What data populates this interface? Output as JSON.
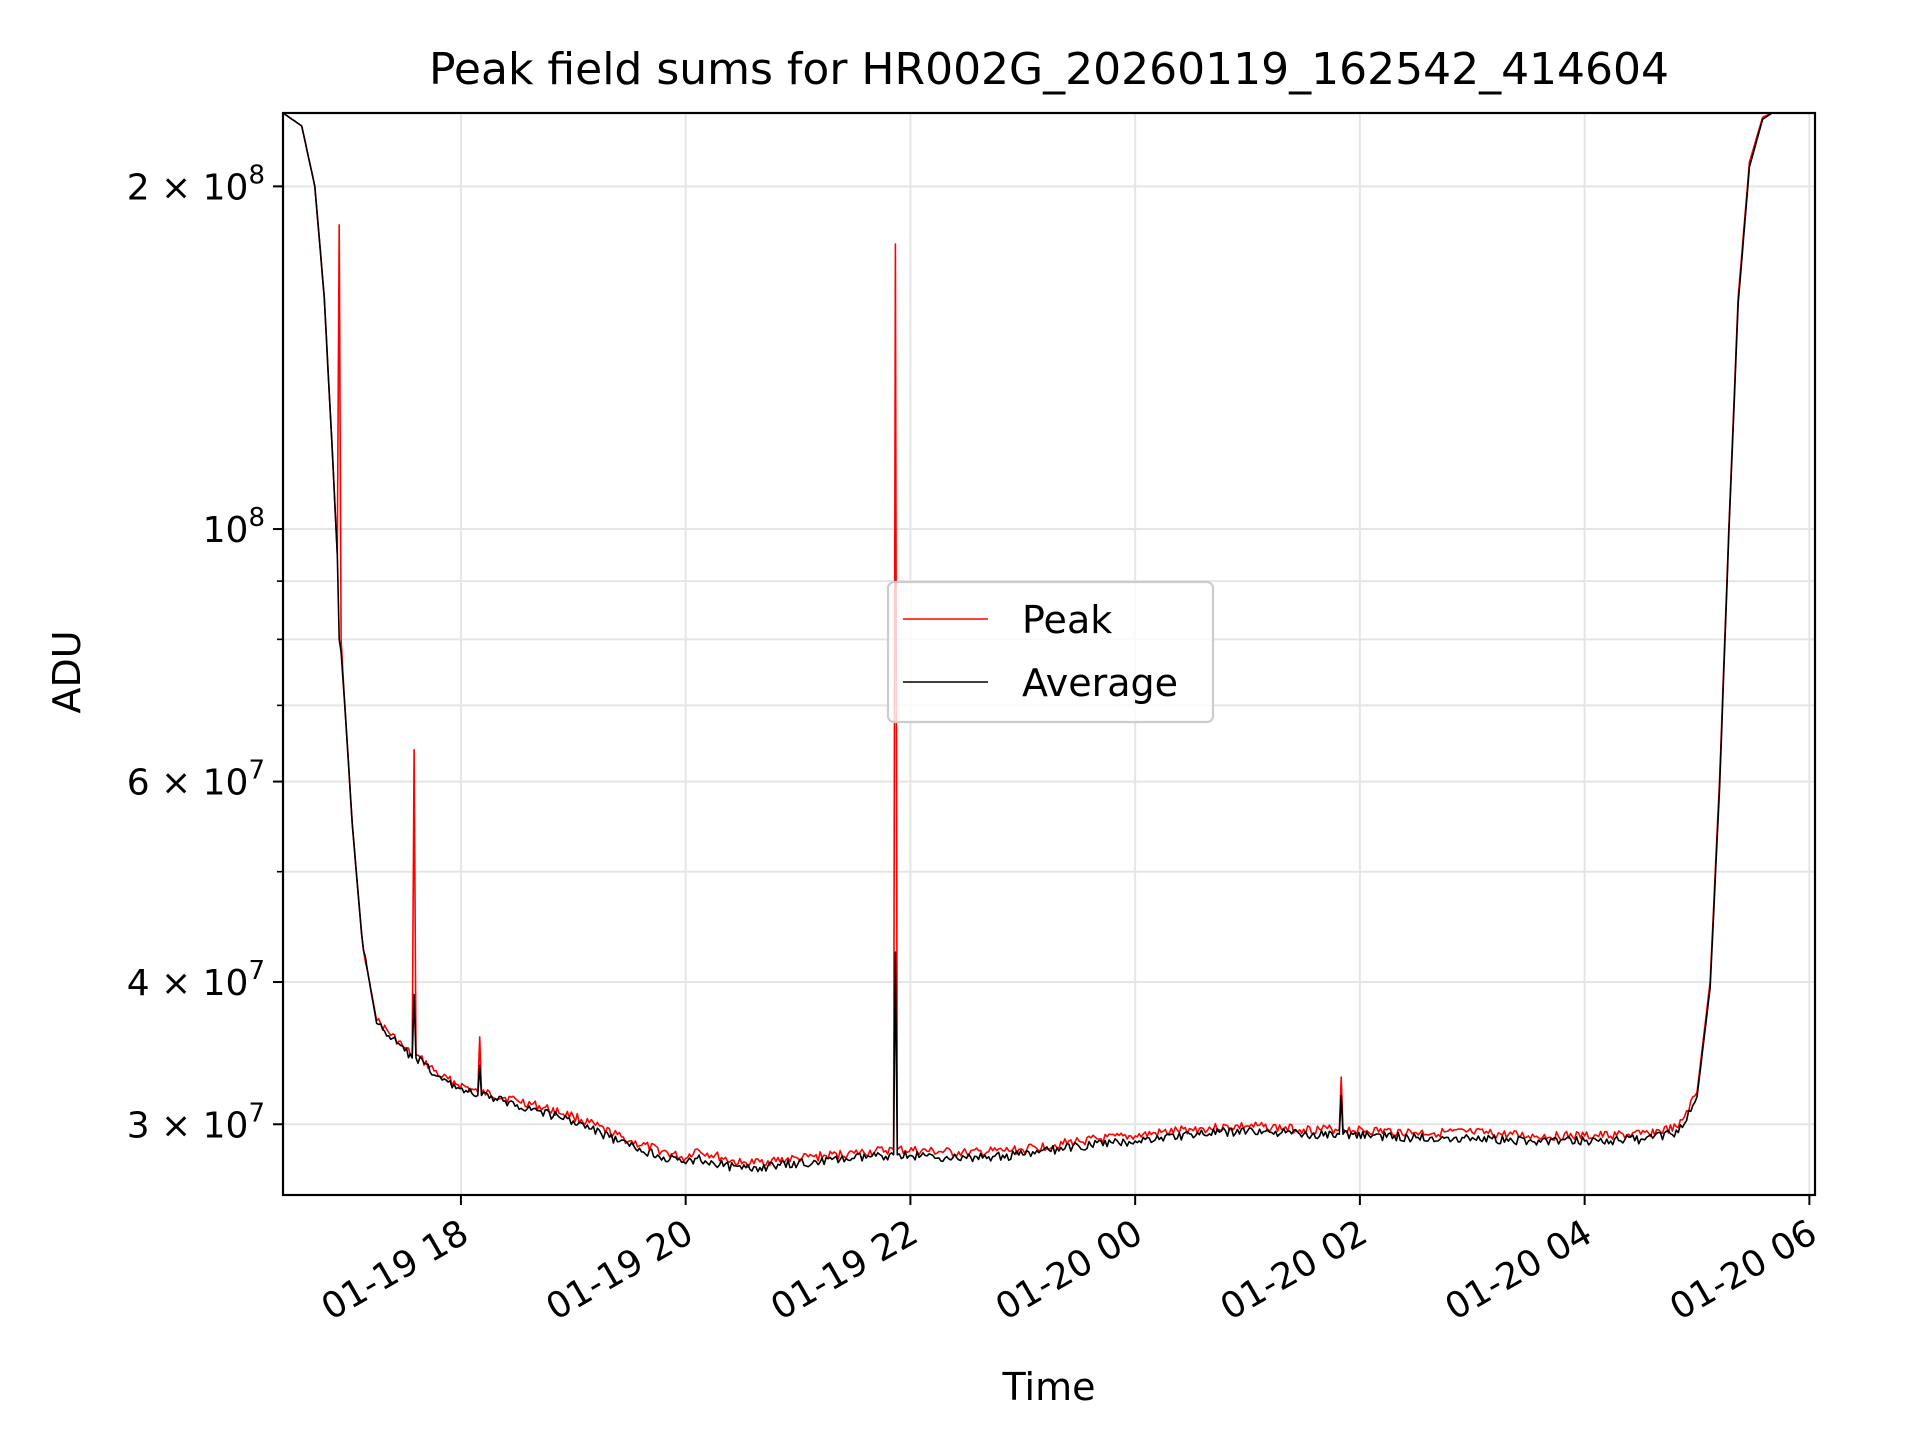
{
  "chart_data": {
    "type": "line",
    "title": "Peak field sums for HR002G_20260119_162542_414604",
    "xlabel": "Time",
    "ylabel": "ADU",
    "x_start": "2026-01-19 16:25",
    "x_end": "2026-01-20 06:03",
    "ylim": [
      26000000,
      232000000
    ],
    "yscale": "log",
    "grid": true,
    "legend_position": "center",
    "x_tick_labels": [
      "01-19 18",
      "01-19 20",
      "01-19 22",
      "01-20 00",
      "01-20 02",
      "01-20 04",
      "01-20 06"
    ],
    "y_tick_labels": [
      {
        "mantissa": "2",
        "exp": "8"
      },
      {
        "mantissa": "",
        "exp": "8"
      },
      {
        "mantissa": "6",
        "exp": "7"
      },
      {
        "mantissa": "4",
        "exp": "7"
      },
      {
        "mantissa": "3",
        "exp": "7"
      }
    ],
    "series": [
      {
        "name": "Peak",
        "color": "#ff0000",
        "points": [
          [
            "2026-01-19 16:25",
            232000000
          ],
          [
            "2026-01-19 16:35",
            226000000
          ],
          [
            "2026-01-19 16:42",
            200000000
          ],
          [
            "2026-01-19 16:47",
            160000000
          ],
          [
            "2026-01-19 16:51",
            120000000
          ],
          [
            "2026-01-19 16:54",
            95000000
          ],
          [
            "2026-01-19 16:55",
            185000000
          ],
          [
            "2026-01-19 16:56",
            80000000
          ],
          [
            "2026-01-19 16:58",
            70000000
          ],
          [
            "2026-01-19 17:02",
            55000000
          ],
          [
            "2026-01-19 17:07",
            44000000
          ],
          [
            "2026-01-19 17:10",
            41000000
          ],
          [
            "2026-01-19 17:15",
            37000000
          ],
          [
            "2026-01-19 17:30",
            35000000
          ],
          [
            "2026-01-19 17:34",
            34500000
          ],
          [
            "2026-01-19 17:35",
            64000000
          ],
          [
            "2026-01-19 17:36",
            34500000
          ],
          [
            "2026-01-19 17:50",
            33000000
          ],
          [
            "2026-01-19 18:09",
            32000000
          ],
          [
            "2026-01-19 18:10",
            35800000
          ],
          [
            "2026-01-19 18:11",
            32000000
          ],
          [
            "2026-01-19 18:30",
            31500000
          ],
          [
            "2026-01-19 19:00",
            30500000
          ],
          [
            "2026-01-19 19:30",
            29000000
          ],
          [
            "2026-01-19 20:00",
            28000000
          ],
          [
            "2026-01-19 20:05",
            28500000
          ],
          [
            "2026-01-19 20:30",
            27700000
          ],
          [
            "2026-01-19 21:00",
            28000000
          ],
          [
            "2026-01-19 21:30",
            28300000
          ],
          [
            "2026-01-19 21:51",
            28500000
          ],
          [
            "2026-01-19 21:52",
            178000000
          ],
          [
            "2026-01-19 21:53",
            28500000
          ],
          [
            "2026-01-19 22:30",
            28300000
          ],
          [
            "2026-01-19 23:00",
            28500000
          ],
          [
            "2026-01-19 23:30",
            29000000
          ],
          [
            "2026-01-20 00:00",
            29300000
          ],
          [
            "2026-01-20 00:30",
            29700000
          ],
          [
            "2026-01-20 01:00",
            29900000
          ],
          [
            "2026-01-20 01:30",
            29700000
          ],
          [
            "2026-01-20 01:49",
            29700000
          ],
          [
            "2026-01-20 01:50",
            33000000
          ],
          [
            "2026-01-20 01:51",
            29700000
          ],
          [
            "2026-01-20 02:30",
            29500000
          ],
          [
            "2026-01-20 03:00",
            29500000
          ],
          [
            "2026-01-20 03:30",
            29300000
          ],
          [
            "2026-01-20 04:00",
            29300000
          ],
          [
            "2026-01-20 04:30",
            29400000
          ],
          [
            "2026-01-20 04:50",
            29800000
          ],
          [
            "2026-01-20 05:00",
            32000000
          ],
          [
            "2026-01-20 05:07",
            40000000
          ],
          [
            "2026-01-20 05:12",
            60000000
          ],
          [
            "2026-01-20 05:17",
            100000000
          ],
          [
            "2026-01-20 05:22",
            160000000
          ],
          [
            "2026-01-20 05:28",
            210000000
          ],
          [
            "2026-01-20 05:35",
            230000000
          ],
          [
            "2026-01-20 05:40",
            232000000
          ],
          [
            "2026-01-20 06:03",
            232000000
          ]
        ]
      },
      {
        "name": "Average",
        "color": "#000000",
        "points": [
          [
            "2026-01-19 16:25",
            232000000
          ],
          [
            "2026-01-19 16:35",
            226000000
          ],
          [
            "2026-01-19 16:42",
            200000000
          ],
          [
            "2026-01-19 16:47",
            160000000
          ],
          [
            "2026-01-19 16:51",
            120000000
          ],
          [
            "2026-01-19 16:54",
            95000000
          ],
          [
            "2026-01-19 16:55",
            80000000
          ],
          [
            "2026-01-19 16:56",
            78000000
          ],
          [
            "2026-01-19 16:58",
            70000000
          ],
          [
            "2026-01-19 17:02",
            55000000
          ],
          [
            "2026-01-19 17:07",
            44000000
          ],
          [
            "2026-01-19 17:10",
            41000000
          ],
          [
            "2026-01-19 17:15",
            36800000
          ],
          [
            "2026-01-19 17:30",
            34800000
          ],
          [
            "2026-01-19 17:34",
            34300000
          ],
          [
            "2026-01-19 17:35",
            39000000
          ],
          [
            "2026-01-19 17:36",
            34300000
          ],
          [
            "2026-01-19 17:50",
            32800000
          ],
          [
            "2026-01-19 18:09",
            31800000
          ],
          [
            "2026-01-19 18:10",
            33800000
          ],
          [
            "2026-01-19 18:11",
            31800000
          ],
          [
            "2026-01-19 18:30",
            31200000
          ],
          [
            "2026-01-19 19:00",
            30200000
          ],
          [
            "2026-01-19 19:30",
            28700000
          ],
          [
            "2026-01-19 20:00",
            27700000
          ],
          [
            "2026-01-19 20:05",
            28000000
          ],
          [
            "2026-01-19 20:30",
            27400000
          ],
          [
            "2026-01-19 21:00",
            27700000
          ],
          [
            "2026-01-19 21:30",
            28000000
          ],
          [
            "2026-01-19 21:51",
            28200000
          ],
          [
            "2026-01-19 21:52",
            42500000
          ],
          [
            "2026-01-19 21:53",
            28200000
          ],
          [
            "2026-01-19 22:30",
            28000000
          ],
          [
            "2026-01-19 23:00",
            28200000
          ],
          [
            "2026-01-19 23:30",
            28700000
          ],
          [
            "2026-01-20 00:00",
            29000000
          ],
          [
            "2026-01-20 00:30",
            29400000
          ],
          [
            "2026-01-20 01:00",
            29600000
          ],
          [
            "2026-01-20 01:30",
            29400000
          ],
          [
            "2026-01-20 01:49",
            29400000
          ],
          [
            "2026-01-20 01:50",
            31800000
          ],
          [
            "2026-01-20 01:51",
            29400000
          ],
          [
            "2026-01-20 02:30",
            29200000
          ],
          [
            "2026-01-20 03:00",
            29200000
          ],
          [
            "2026-01-20 03:30",
            29000000
          ],
          [
            "2026-01-20 04:00",
            29000000
          ],
          [
            "2026-01-20 04:30",
            29100000
          ],
          [
            "2026-01-20 04:50",
            29500000
          ],
          [
            "2026-01-20 05:00",
            31700000
          ],
          [
            "2026-01-20 05:07",
            39500000
          ],
          [
            "2026-01-20 05:12",
            59000000
          ],
          [
            "2026-01-20 05:17",
            99000000
          ],
          [
            "2026-01-20 05:22",
            158000000
          ],
          [
            "2026-01-20 05:28",
            208000000
          ],
          [
            "2026-01-20 05:35",
            229000000
          ],
          [
            "2026-01-20 05:40",
            232000000
          ],
          [
            "2026-01-20 06:03",
            232000000
          ]
        ]
      }
    ]
  }
}
